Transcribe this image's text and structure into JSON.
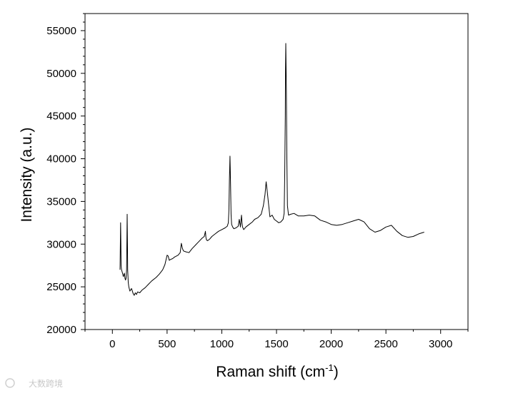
{
  "chart_data": {
    "type": "line",
    "title": "",
    "xlabel": "Raman shift (cm",
    "xlabel_sup": "-1",
    "xlabel_close": ")",
    "ylabel": "Intensity (a.u.)",
    "xlim": [
      -250,
      3250
    ],
    "ylim": [
      20000,
      57000
    ],
    "xticks": [
      0,
      500,
      1000,
      1500,
      2000,
      2500,
      3000
    ],
    "yticks": [
      20000,
      25000,
      30000,
      35000,
      40000,
      45000,
      50000,
      55000
    ],
    "grid": false,
    "legend": "none",
    "line_color": "#000000",
    "series": [
      {
        "x": [
          70,
          72,
          75,
          78,
          80,
          84,
          88,
          95,
          100,
          110,
          115,
          120,
          125,
          130,
          135,
          138,
          140,
          145,
          150,
          160,
          175,
          190,
          200,
          210,
          220,
          230,
          250,
          270,
          300,
          330,
          360,
          400,
          430,
          460,
          480,
          500,
          510,
          520,
          530,
          550,
          570,
          600,
          620,
          630,
          640,
          650,
          670,
          700,
          730,
          760,
          790,
          820,
          840,
          850,
          855,
          860,
          870,
          890,
          910,
          940,
          970,
          1000,
          1030,
          1050,
          1060,
          1065,
          1070,
          1075,
          1080,
          1085,
          1090,
          1100,
          1110,
          1130,
          1150,
          1160,
          1170,
          1180,
          1185,
          1190,
          1200,
          1220,
          1250,
          1280,
          1300,
          1330,
          1360,
          1380,
          1395,
          1405,
          1415,
          1425,
          1440,
          1460,
          1480,
          1500,
          1520,
          1540,
          1560,
          1570,
          1575,
          1580,
          1582,
          1585,
          1590,
          1595,
          1600,
          1610,
          1630,
          1660,
          1700,
          1750,
          1800,
          1850,
          1900,
          1950,
          2000,
          2050,
          2100,
          2150,
          2200,
          2250,
          2300,
          2350,
          2400,
          2450,
          2500,
          2550,
          2600,
          2650,
          2700,
          2750,
          2800,
          2850
        ],
        "y": [
          27000,
          29000,
          32500,
          30000,
          27500,
          27000,
          26800,
          26500,
          26200,
          26600,
          26000,
          25800,
          26000,
          27000,
          33500,
          30000,
          27000,
          25500,
          25000,
          24500,
          24800,
          24200,
          24000,
          24300,
          24100,
          24400,
          24300,
          24600,
          24900,
          25300,
          25700,
          26100,
          26500,
          27000,
          27600,
          28700,
          28600,
          28100,
          28200,
          28300,
          28500,
          28700,
          29000,
          30100,
          29500,
          29200,
          29100,
          29000,
          29500,
          29900,
          30300,
          30700,
          30900,
          31500,
          30800,
          30500,
          30400,
          30600,
          30900,
          31200,
          31500,
          31700,
          31900,
          32100,
          32500,
          34000,
          37500,
          40300,
          37000,
          33500,
          32300,
          32000,
          31800,
          31900,
          32100,
          32900,
          32000,
          33400,
          32400,
          32000,
          31700,
          32000,
          32300,
          32600,
          32900,
          33100,
          33500,
          34500,
          35800,
          37300,
          36200,
          35000,
          33200,
          33400,
          32900,
          32700,
          32500,
          32600,
          32900,
          33600,
          38000,
          45000,
          50500,
          53500,
          48000,
          40000,
          34500,
          33400,
          33500,
          33600,
          33300,
          33300,
          33400,
          33300,
          32800,
          32600,
          32300,
          32200,
          32300,
          32500,
          32700,
          32900,
          32600,
          31800,
          31400,
          31600,
          32000,
          32200,
          31500,
          31000,
          30800,
          30900,
          31200,
          31400
        ]
      }
    ]
  },
  "watermark": "大数跨境"
}
